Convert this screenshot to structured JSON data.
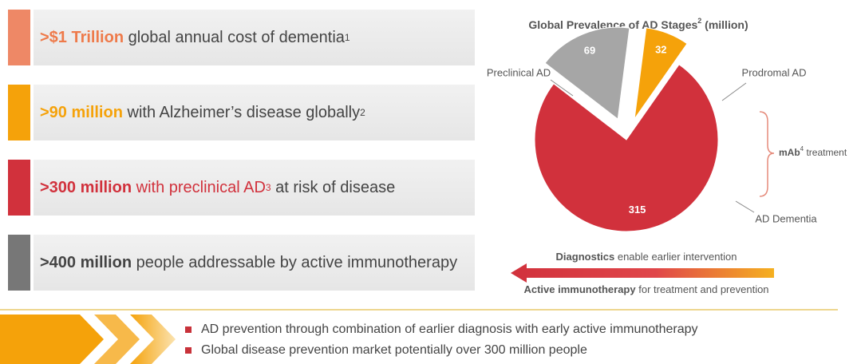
{
  "stats": [
    {
      "highlight": ">$1 Trillion",
      "text": " global annual cost of dementia",
      "sup": "1"
    },
    {
      "highlight": ">90 million",
      "text": " with Alzheimer’s disease globally",
      "sup": "2"
    },
    {
      "highlight": ">300 million",
      "text": " with preclinical AD",
      "sup": "3",
      "rest": " at risk of disease"
    },
    {
      "highlight": ">400 million",
      "text": " people addressable by active immunotherapy"
    }
  ],
  "chart_data": {
    "type": "pie",
    "title": "Global Prevalence of AD Stages",
    "title_sup": "2",
    "title_suffix": " (million)",
    "categories": [
      "Preclinical AD",
      "Prodromal AD",
      "AD Dementia"
    ],
    "values": [
      315,
      69,
      32
    ],
    "colors": [
      "#d1313c",
      "#a6a6a6",
      "#f5a20a"
    ],
    "annotation": {
      "bold": "mAb",
      "sup": "4",
      "text": " treatment"
    }
  },
  "arrow": {
    "top_bold": "Diagnostics",
    "top_text": " enable earlier intervention",
    "bottom_bold": "Active immunotherapy",
    "bottom_text": " for treatment and prevention"
  },
  "bullets": [
    "AD prevention through combination of earlier diagnosis with early active immunotherapy",
    "Global disease prevention market potentially over 300 million people"
  ]
}
